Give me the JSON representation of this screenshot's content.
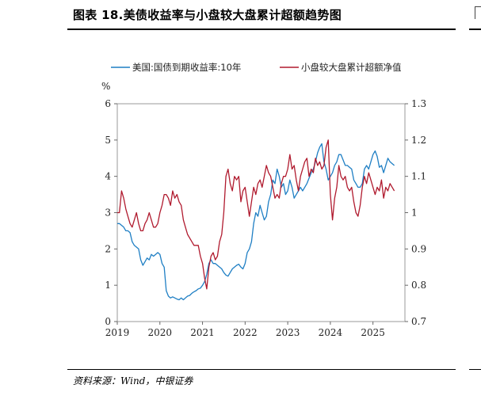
{
  "header": {
    "title": "图表 18.美债收益率与小盘较大盘累计超额趋势图"
  },
  "footer": {
    "source": "资料来源：Wind，中银证券"
  },
  "colors": {
    "series_us10y": "#1f7fc4",
    "series_excess": "#b01a2e"
  },
  "chart_data": {
    "type": "line",
    "y_unit_label": "%",
    "xlim": [
      2019.0,
      2025.75
    ],
    "x_ticks": [
      "2019",
      "2020",
      "2021",
      "2022",
      "2023",
      "2024",
      "2025"
    ],
    "x_tick_values": [
      2019,
      2020,
      2021,
      2022,
      2023,
      2024,
      2025
    ],
    "y_left": {
      "lim": [
        0,
        6
      ],
      "ticks": [
        "0",
        "1",
        "2",
        "3",
        "4",
        "5",
        "6"
      ]
    },
    "y_right": {
      "lim": [
        0.7,
        1.3
      ],
      "ticks": [
        "0.7",
        "0.8",
        "0.9",
        "1",
        "1.1",
        "1.2",
        "1.3"
      ]
    },
    "legend": {
      "position": "top"
    },
    "series": [
      {
        "name": "美国:国债到期收益率:10年",
        "axis": "left",
        "x": [
          2019.0,
          2019.05,
          2019.1,
          2019.15,
          2019.2,
          2019.25,
          2019.3,
          2019.35,
          2019.4,
          2019.45,
          2019.5,
          2019.55,
          2019.6,
          2019.65,
          2019.7,
          2019.75,
          2019.8,
          2019.85,
          2019.9,
          2019.95,
          2020.0,
          2020.05,
          2020.1,
          2020.15,
          2020.2,
          2020.25,
          2020.3,
          2020.35,
          2020.4,
          2020.45,
          2020.5,
          2020.55,
          2020.6,
          2020.65,
          2020.7,
          2020.75,
          2020.8,
          2020.85,
          2020.9,
          2020.95,
          2021.0,
          2021.05,
          2021.1,
          2021.15,
          2021.2,
          2021.25,
          2021.3,
          2021.35,
          2021.4,
          2021.45,
          2021.5,
          2021.55,
          2021.6,
          2021.65,
          2021.7,
          2021.75,
          2021.8,
          2021.85,
          2021.9,
          2021.95,
          2022.0,
          2022.05,
          2022.1,
          2022.15,
          2022.2,
          2022.25,
          2022.3,
          2022.35,
          2022.4,
          2022.45,
          2022.5,
          2022.55,
          2022.6,
          2022.65,
          2022.7,
          2022.75,
          2022.8,
          2022.85,
          2022.9,
          2022.95,
          2023.0,
          2023.05,
          2023.1,
          2023.15,
          2023.2,
          2023.25,
          2023.3,
          2023.35,
          2023.4,
          2023.45,
          2023.5,
          2023.55,
          2023.6,
          2023.65,
          2023.7,
          2023.75,
          2023.8,
          2023.85,
          2023.9,
          2023.95,
          2024.0,
          2024.05,
          2024.1,
          2024.15,
          2024.2,
          2024.25,
          2024.3,
          2024.35,
          2024.4,
          2024.45,
          2024.5,
          2024.55,
          2024.6,
          2024.65,
          2024.7,
          2024.75,
          2024.8,
          2024.85,
          2024.9,
          2024.95,
          2025.0,
          2025.05,
          2025.1,
          2025.15,
          2025.2,
          2025.25,
          2025.3,
          2025.35,
          2025.4,
          2025.45,
          2025.5
        ],
        "y": [
          2.7,
          2.7,
          2.65,
          2.6,
          2.5,
          2.5,
          2.45,
          2.2,
          2.1,
          2.05,
          2.0,
          1.7,
          1.55,
          1.65,
          1.75,
          1.7,
          1.85,
          1.8,
          1.85,
          1.9,
          1.85,
          1.6,
          1.5,
          0.85,
          0.7,
          0.65,
          0.68,
          0.65,
          0.62,
          0.6,
          0.65,
          0.6,
          0.65,
          0.7,
          0.72,
          0.78,
          0.82,
          0.85,
          0.9,
          0.92,
          1.0,
          1.1,
          1.3,
          1.6,
          1.7,
          1.6,
          1.6,
          1.55,
          1.5,
          1.45,
          1.35,
          1.28,
          1.25,
          1.35,
          1.45,
          1.5,
          1.55,
          1.58,
          1.5,
          1.45,
          1.6,
          1.9,
          2.0,
          2.2,
          2.7,
          3.0,
          2.9,
          3.2,
          3.0,
          2.8,
          2.9,
          3.3,
          3.5,
          3.9,
          3.8,
          4.2,
          4.0,
          3.7,
          3.8,
          3.5,
          3.6,
          3.9,
          3.7,
          3.4,
          3.5,
          3.6,
          3.7,
          3.6,
          3.7,
          3.8,
          3.95,
          4.1,
          4.2,
          4.4,
          4.65,
          4.8,
          4.9,
          4.4,
          4.2,
          3.9,
          4.0,
          4.1,
          4.3,
          4.4,
          4.6,
          4.6,
          4.45,
          4.3,
          4.3,
          4.25,
          4.2,
          3.9,
          3.8,
          3.7,
          3.7,
          3.8,
          4.2,
          4.3,
          4.2,
          4.4,
          4.6,
          4.7,
          4.55,
          4.25,
          4.3,
          4.1,
          4.3,
          4.5,
          4.4,
          4.35,
          4.3
        ]
      },
      {
        "name": "小盘较大盘累计超额净值",
        "axis": "right",
        "x": [
          2019.0,
          2019.05,
          2019.1,
          2019.15,
          2019.2,
          2019.25,
          2019.3,
          2019.35,
          2019.4,
          2019.45,
          2019.5,
          2019.55,
          2019.6,
          2019.65,
          2019.7,
          2019.75,
          2019.8,
          2019.85,
          2019.9,
          2019.95,
          2020.0,
          2020.05,
          2020.1,
          2020.15,
          2020.2,
          2020.25,
          2020.3,
          2020.35,
          2020.4,
          2020.45,
          2020.5,
          2020.55,
          2020.6,
          2020.65,
          2020.7,
          2020.75,
          2020.8,
          2020.85,
          2020.9,
          2020.95,
          2021.0,
          2021.05,
          2021.1,
          2021.15,
          2021.2,
          2021.25,
          2021.3,
          2021.35,
          2021.4,
          2021.45,
          2021.5,
          2021.55,
          2021.6,
          2021.65,
          2021.7,
          2021.75,
          2021.8,
          2021.85,
          2021.9,
          2021.95,
          2022.0,
          2022.05,
          2022.1,
          2022.15,
          2022.2,
          2022.25,
          2022.3,
          2022.35,
          2022.4,
          2022.45,
          2022.5,
          2022.55,
          2022.6,
          2022.65,
          2022.7,
          2022.75,
          2022.8,
          2022.85,
          2022.9,
          2022.95,
          2023.0,
          2023.05,
          2023.1,
          2023.15,
          2023.2,
          2023.25,
          2023.3,
          2023.35,
          2023.4,
          2023.45,
          2023.5,
          2023.55,
          2023.6,
          2023.65,
          2023.7,
          2023.75,
          2023.8,
          2023.85,
          2023.9,
          2023.95,
          2024.0,
          2024.05,
          2024.1,
          2024.15,
          2024.2,
          2024.25,
          2024.3,
          2024.35,
          2024.4,
          2024.45,
          2024.5,
          2024.55,
          2024.6,
          2024.65,
          2024.7,
          2024.75,
          2024.8,
          2024.85,
          2024.9,
          2024.95,
          2025.0,
          2025.05,
          2025.1,
          2025.15,
          2025.2,
          2025.25,
          2025.3,
          2025.35,
          2025.4,
          2025.45,
          2025.5
        ],
        "y": [
          1.0,
          1.0,
          1.06,
          1.04,
          1.01,
          0.99,
          0.97,
          0.96,
          0.98,
          1.0,
          0.97,
          0.95,
          0.95,
          0.97,
          0.98,
          1.0,
          0.98,
          0.96,
          0.96,
          0.97,
          1.0,
          1.02,
          1.05,
          1.05,
          1.04,
          1.02,
          1.06,
          1.04,
          1.05,
          1.03,
          1.02,
          0.98,
          0.96,
          0.94,
          0.93,
          0.92,
          0.91,
          0.91,
          0.91,
          0.88,
          0.86,
          0.82,
          0.79,
          0.85,
          0.88,
          0.89,
          0.87,
          0.88,
          0.92,
          0.94,
          1.0,
          1.1,
          1.12,
          1.08,
          1.06,
          1.1,
          1.09,
          1.1,
          1.03,
          1.06,
          1.07,
          1.03,
          0.99,
          1.03,
          1.07,
          1.05,
          1.08,
          1.09,
          1.07,
          1.1,
          1.13,
          1.11,
          1.1,
          1.07,
          1.04,
          1.05,
          1.04,
          1.08,
          1.1,
          1.1,
          1.12,
          1.16,
          1.12,
          1.13,
          1.09,
          1.06,
          1.1,
          1.12,
          1.14,
          1.15,
          1.1,
          1.12,
          1.11,
          1.15,
          1.13,
          1.14,
          1.12,
          1.13,
          1.18,
          1.2,
          1.05,
          0.98,
          1.04,
          1.07,
          1.13,
          1.1,
          1.09,
          1.1,
          1.07,
          1.06,
          1.07,
          1.03,
          1.0,
          0.99,
          1.02,
          1.07,
          1.1,
          1.08,
          1.11,
          1.09,
          1.07,
          1.05,
          1.07,
          1.06,
          1.09,
          1.04,
          1.07,
          1.06,
          1.08,
          1.07,
          1.06
        ]
      }
    ]
  }
}
